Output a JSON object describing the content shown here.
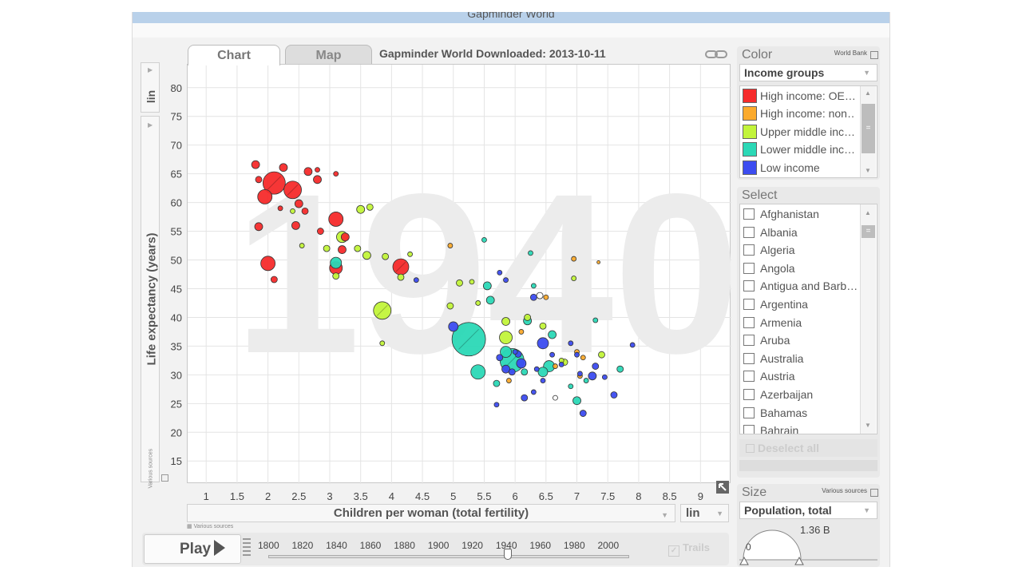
{
  "window": {
    "title": "Gapminder World"
  },
  "tabs": [
    {
      "label": "Chart"
    },
    {
      "label": "Map"
    }
  ],
  "chart_title": "Gapminder World Downloaded: 2013-10-11",
  "y_axis": {
    "scale": "lin",
    "label": "Life expectancy (years)",
    "source": "Various sources"
  },
  "x_axis": {
    "label": "Children per woman (total fertility)",
    "scale": "lin",
    "source": "Various sources"
  },
  "watermark_year": "1940",
  "colors": {
    "high_oecd": "#f62b2b",
    "high_non": "#fbaa2c",
    "upper_middle": "#c2f43a",
    "lower_middle": "#2bd8b6",
    "low": "#3c4cf0",
    "unknown": "#ffffff"
  },
  "chart_data": {
    "type": "scatter",
    "xlabel": "Children per woman (total fertility)",
    "ylabel": "Life expectancy (years)",
    "xlim": [
      0.7,
      9.5
    ],
    "ylim": [
      11,
      84
    ],
    "x_ticks": [
      "1",
      "1.5",
      "2",
      "2.5",
      "3",
      "3.5",
      "4",
      "4.5",
      "5",
      "5.5",
      "6",
      "6.5",
      "7",
      "7.5",
      "8",
      "8.5",
      "9"
    ],
    "y_ticks": [
      "15",
      "20",
      "25",
      "30",
      "35",
      "40",
      "45",
      "50",
      "55",
      "60",
      "65",
      "70",
      "75",
      "80"
    ],
    "size_indicator": "Population, total",
    "series": [
      {
        "name": "High income: OECD",
        "color": "#f62b2b",
        "points": [
          [
            2.1,
            63.4,
            14
          ],
          [
            2.4,
            62.2,
            11
          ],
          [
            1.95,
            61.0,
            9
          ],
          [
            3.1,
            57.1,
            9
          ],
          [
            2.0,
            49.4,
            9
          ],
          [
            4.15,
            48.8,
            10
          ],
          [
            3.1,
            48.6,
            8
          ],
          [
            1.8,
            66.6,
            5
          ],
          [
            2.25,
            66.1,
            5
          ],
          [
            2.65,
            65.4,
            5
          ],
          [
            2.8,
            64.0,
            5
          ],
          [
            1.85,
            64.0,
            4
          ],
          [
            2.5,
            59.8,
            5
          ],
          [
            2.6,
            58.5,
            4
          ],
          [
            1.85,
            55.8,
            5
          ],
          [
            2.45,
            56.0,
            5
          ],
          [
            3.25,
            54.0,
            5
          ],
          [
            2.85,
            55.0,
            4
          ],
          [
            3.2,
            51.8,
            5
          ],
          [
            2.1,
            46.6,
            4
          ],
          [
            3.1,
            65.0,
            3
          ],
          [
            2.8,
            65.7,
            3
          ],
          [
            2.2,
            59.0,
            3
          ]
        ]
      },
      {
        "name": "High income: non OECD",
        "color": "#fbaa2c",
        "points": [
          [
            4.95,
            52.5,
            3
          ],
          [
            6.95,
            50.2,
            3
          ],
          [
            7.35,
            49.6,
            2
          ],
          [
            6.5,
            43.5,
            3
          ],
          [
            6.1,
            37.5,
            3
          ],
          [
            7.0,
            34.0,
            3
          ],
          [
            7.1,
            33.0,
            3
          ],
          [
            6.65,
            31.5,
            3
          ],
          [
            7.05,
            29.8,
            3
          ],
          [
            5.9,
            29.0,
            3
          ]
        ]
      },
      {
        "name": "Upper middle income",
        "color": "#c2f43a",
        "points": [
          [
            3.85,
            41.2,
            11
          ],
          [
            3.2,
            54.0,
            7
          ],
          [
            5.85,
            36.5,
            8
          ],
          [
            3.5,
            58.8,
            5
          ],
          [
            3.65,
            59.2,
            4
          ],
          [
            2.95,
            52.0,
            4
          ],
          [
            3.6,
            50.8,
            5
          ],
          [
            3.9,
            50.6,
            4
          ],
          [
            3.45,
            52.0,
            4
          ],
          [
            3.1,
            47.2,
            4
          ],
          [
            4.15,
            47.0,
            4
          ],
          [
            4.3,
            51.0,
            3
          ],
          [
            2.55,
            52.5,
            3
          ],
          [
            2.4,
            58.5,
            3
          ],
          [
            5.4,
            42.5,
            3
          ],
          [
            4.95,
            42.0,
            4
          ],
          [
            5.1,
            46.0,
            4
          ],
          [
            5.3,
            46.2,
            3
          ],
          [
            5.85,
            39.3,
            5
          ],
          [
            6.2,
            40.0,
            4
          ],
          [
            6.45,
            38.5,
            4
          ],
          [
            7.4,
            33.5,
            4
          ],
          [
            6.8,
            32.2,
            4
          ],
          [
            6.95,
            46.8,
            3
          ],
          [
            6.75,
            32.5,
            3
          ],
          [
            3.85,
            35.5,
            3
          ]
        ]
      },
      {
        "name": "Lower middle income",
        "color": "#2bd8b6",
        "points": [
          [
            5.25,
            36.2,
            21
          ],
          [
            5.95,
            32.5,
            15
          ],
          [
            5.4,
            30.5,
            9
          ],
          [
            3.1,
            49.5,
            7
          ],
          [
            6.55,
            31.5,
            7
          ],
          [
            6.45,
            30.5,
            6
          ],
          [
            7.0,
            25.5,
            5
          ],
          [
            5.85,
            34.0,
            7
          ],
          [
            6.2,
            39.4,
            5
          ],
          [
            6.6,
            37.0,
            5
          ],
          [
            7.7,
            31.0,
            4
          ],
          [
            5.55,
            45.5,
            5
          ],
          [
            5.6,
            43.0,
            5
          ],
          [
            5.5,
            53.5,
            3
          ],
          [
            6.25,
            51.2,
            3
          ],
          [
            7.15,
            29.0,
            3
          ],
          [
            6.3,
            45.5,
            3
          ],
          [
            6.15,
            30.5,
            4
          ],
          [
            5.7,
            28.5,
            4
          ],
          [
            6.9,
            28.0,
            3
          ],
          [
            7.3,
            39.5,
            3
          ]
        ]
      },
      {
        "name": "Low income",
        "color": "#3c4cf0",
        "points": [
          [
            5.0,
            38.4,
            6
          ],
          [
            6.45,
            35.5,
            7
          ],
          [
            6.1,
            32.0,
            6
          ],
          [
            5.85,
            31.0,
            5
          ],
          [
            7.3,
            31.5,
            4
          ],
          [
            7.25,
            29.8,
            5
          ],
          [
            7.6,
            26.5,
            4
          ],
          [
            7.1,
            23.3,
            4
          ],
          [
            5.7,
            24.8,
            3
          ],
          [
            6.15,
            26.0,
            4
          ],
          [
            6.3,
            27.0,
            3
          ],
          [
            6.6,
            33.5,
            3
          ],
          [
            6.75,
            31.8,
            3
          ],
          [
            7.05,
            30.2,
            3
          ],
          [
            5.75,
            33.0,
            4
          ],
          [
            5.95,
            30.5,
            4
          ],
          [
            6.05,
            33.6,
            4
          ],
          [
            5.75,
            47.8,
            3
          ],
          [
            5.85,
            46.5,
            3
          ],
          [
            6.3,
            43.5,
            4
          ],
          [
            6.9,
            35.5,
            3
          ],
          [
            6.45,
            29.0,
            3
          ],
          [
            7.45,
            29.6,
            3
          ],
          [
            7.0,
            33.5,
            3
          ],
          [
            7.9,
            35.2,
            3
          ],
          [
            4.4,
            46.5,
            3
          ],
          [
            6.35,
            31.0,
            3
          ],
          [
            6.0,
            34.0,
            3
          ]
        ]
      },
      {
        "name": "Unknown",
        "color": "#ffffff",
        "points": [
          [
            6.4,
            43.8,
            4
          ],
          [
            6.65,
            26.0,
            3
          ]
        ]
      }
    ]
  },
  "color_panel": {
    "header": "Color",
    "source": "World Bank",
    "selected": "Income groups",
    "legend": [
      {
        "label": "High income: OE…",
        "color": "#f62b2b"
      },
      {
        "label": "High income: non…",
        "color": "#fbaa2c"
      },
      {
        "label": "Upper middle inc…",
        "color": "#c2f43a"
      },
      {
        "label": "Lower middle inc…",
        "color": "#2bd8b6"
      },
      {
        "label": "Low income",
        "color": "#3c4cf0"
      }
    ]
  },
  "select_panel": {
    "header": "Select",
    "countries": [
      "Afghanistan",
      "Albania",
      "Algeria",
      "Angola",
      "Antigua and Barb…",
      "Argentina",
      "Armenia",
      "Aruba",
      "Australia",
      "Austria",
      "Azerbaijan",
      "Bahamas",
      "Bahrain"
    ],
    "deselect_label": "Deselect all"
  },
  "size_panel": {
    "header": "Size",
    "source": "Various sources",
    "selected": "Population, total",
    "max_label": "1.36 B",
    "min_label": "0"
  },
  "timeline": {
    "play_label": "Play",
    "years": [
      "1800",
      "1820",
      "1840",
      "1860",
      "1880",
      "1900",
      "1920",
      "1940",
      "1960",
      "1980",
      "2000"
    ],
    "current_year": 1940,
    "range": [
      1800,
      2012
    ],
    "trails_label": "Trails"
  }
}
